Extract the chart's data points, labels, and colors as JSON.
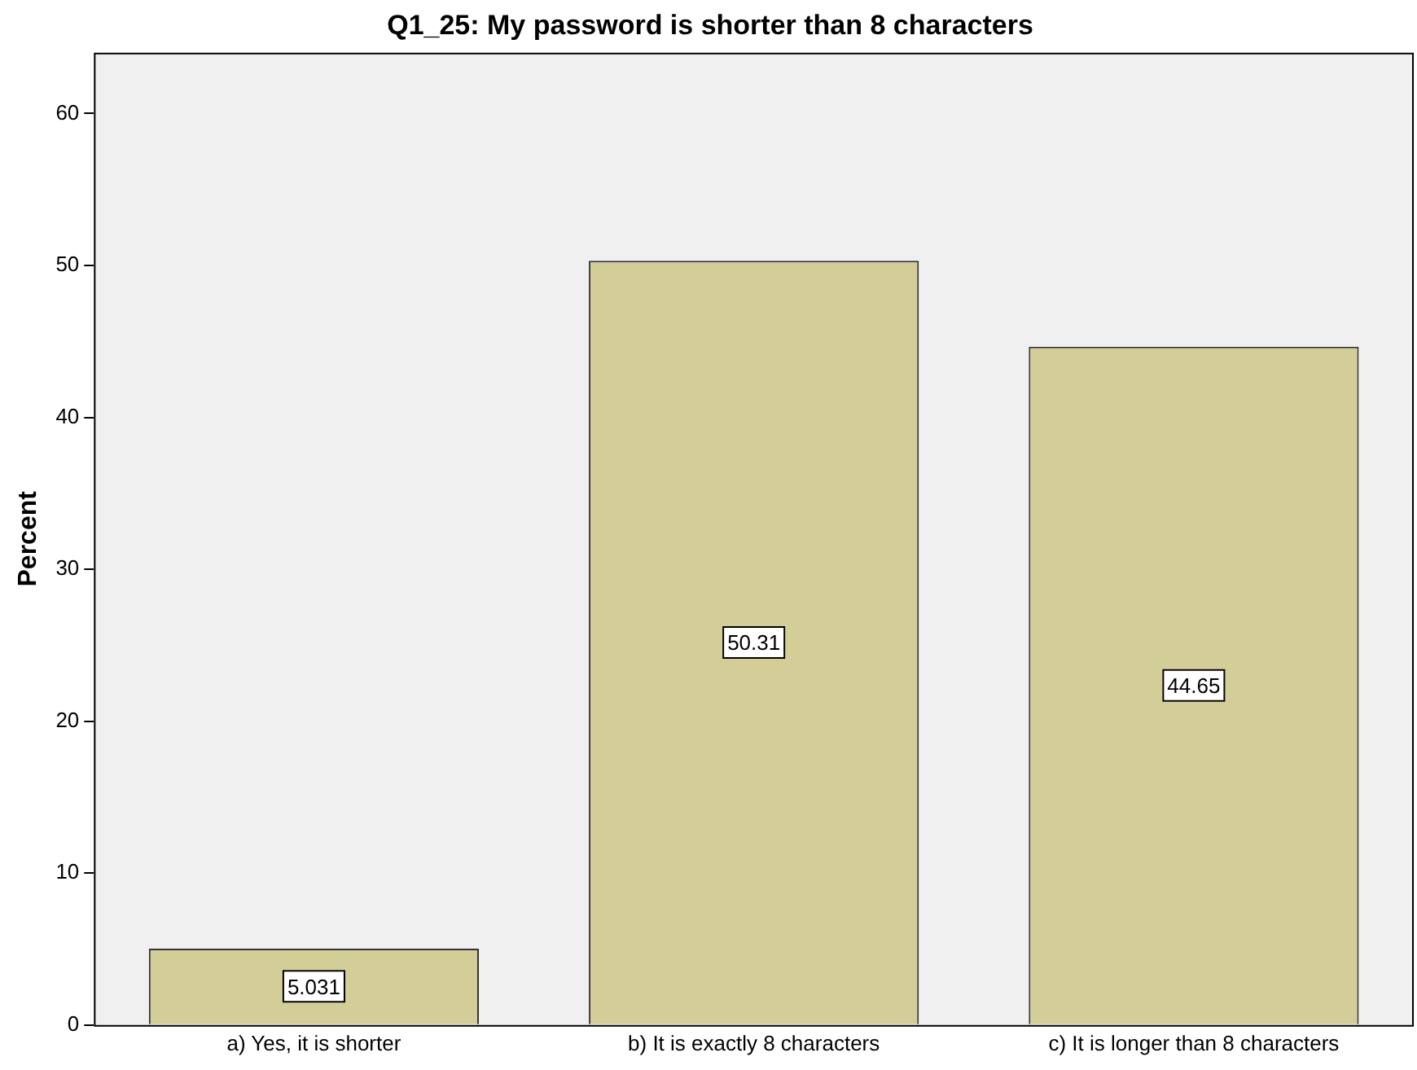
{
  "chart_data": {
    "type": "bar",
    "title": "Q1_25: My password is shorter than 8 characters",
    "ylabel": "Percent",
    "categories": [
      "a) Yes, it is shorter",
      "b) It is exactly 8 characters",
      "c) It is longer than 8 characters"
    ],
    "values": [
      5.031,
      50.31,
      44.65
    ],
    "color": "#d3ce97",
    "ylim": [
      0,
      64
    ],
    "yticks": [
      0,
      10,
      20,
      30,
      40,
      50,
      60
    ],
    "grid": false,
    "legend": false,
    "data_labels": true
  }
}
